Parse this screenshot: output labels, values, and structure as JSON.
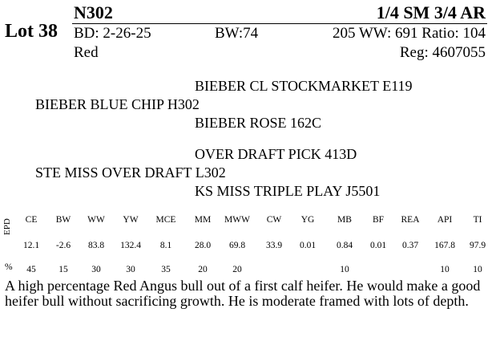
{
  "lot": "Lot 38",
  "animal_id": "N302",
  "breed": "1/4 SM 3/4 AR",
  "birth_date": "BD: 2-26-25",
  "birth_weight": "BW:74",
  "weaning": "205 WW: 691 Ratio: 104",
  "color": "Red",
  "registration": "Reg: 4607055",
  "pedigree": {
    "sire_sire": "BIEBER CL STOCKMARKET E119",
    "sire": "BIEBER BLUE CHIP H302",
    "sire_dam": "BIEBER ROSE 162C",
    "dam_sire": "OVER DRAFT PICK 413D",
    "dam": "STE MISS OVER DRAFT L302",
    "dam_dam": "KS MISS TRIPLE PLAY J5501"
  },
  "epd_label": "EPD",
  "pct_label": "%",
  "epd_headers": [
    "CE",
    "BW",
    "WW",
    "YW",
    "MCE",
    "MM",
    "MWW",
    "CW",
    "YG",
    "MB",
    "BF",
    "REA",
    "API",
    "TI"
  ],
  "epd_values": [
    "12.1",
    "-2.6",
    "83.8",
    "132.4",
    "8.1",
    "28.0",
    "69.8",
    "33.9",
    "0.01",
    "0.84",
    "0.01",
    "0.37",
    "167.8",
    "97.9"
  ],
  "epd_percent": [
    "45",
    "15",
    "30",
    "30",
    "35",
    "20",
    "20",
    "",
    "",
    "10",
    "",
    "",
    "10",
    "10"
  ],
  "remarks": "A high percentage Red Angus bull out of a first calf heifer.  He would make a good heifer bull without sacrificing growth.  He is moderate framed with lots of depth."
}
